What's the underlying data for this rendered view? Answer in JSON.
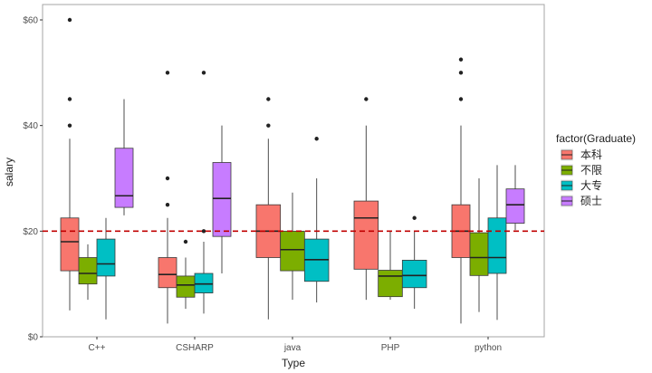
{
  "chart_data": {
    "type": "boxplot",
    "xlabel": "Type",
    "ylabel": "salary",
    "ylim": [
      0,
      63
    ],
    "yticks": [
      0,
      20,
      40,
      60
    ],
    "ytick_labels": [
      "$0",
      "$20",
      "$40",
      "$60"
    ],
    "categories": [
      "C++",
      "CSHARP",
      "java",
      "PHP",
      "python"
    ],
    "reference_line": {
      "value": 20,
      "style": "dashed",
      "color": "#c00000"
    },
    "legend": {
      "title": "factor(Graduate)",
      "position": "right",
      "entries": [
        {
          "label": "本科",
          "color": "#f8766d"
        },
        {
          "label": "不限",
          "color": "#7cae00"
        },
        {
          "label": "大专",
          "color": "#00bfc4"
        },
        {
          "label": "硕士",
          "color": "#c77cff"
        }
      ]
    },
    "series": [
      {
        "category": "C++",
        "boxes": [
          {
            "group": "本科",
            "min": 5,
            "q1": 12.5,
            "median": 18,
            "q3": 22.5,
            "max": 37.5,
            "outliers": [
              40,
              45,
              60
            ]
          },
          {
            "group": "不限",
            "min": 7,
            "q1": 10,
            "median": 12,
            "q3": 15,
            "max": 17.5,
            "outliers": []
          },
          {
            "group": "大专",
            "min": 3.3,
            "q1": 11.5,
            "median": 13.8,
            "q3": 18.5,
            "max": 22.5,
            "outliers": []
          },
          {
            "group": "硕士",
            "min": 23,
            "q1": 24.5,
            "median": 26.7,
            "q3": 35.7,
            "max": 45,
            "outliers": []
          }
        ]
      },
      {
        "category": "CSHARP",
        "boxes": [
          {
            "group": "本科",
            "min": 2.5,
            "q1": 9.3,
            "median": 11.8,
            "q3": 15,
            "max": 22.5,
            "outliers": [
              25,
              30,
              50
            ]
          },
          {
            "group": "不限",
            "min": 5.3,
            "q1": 7.5,
            "median": 9.8,
            "q3": 11.5,
            "max": 15,
            "outliers": [
              18
            ]
          },
          {
            "group": "大专",
            "min": 4.4,
            "q1": 8.3,
            "median": 10,
            "q3": 12,
            "max": 18,
            "outliers": [
              20,
              50
            ]
          },
          {
            "group": "硕士",
            "min": 12,
            "q1": 19,
            "median": 26.2,
            "q3": 33,
            "max": 40,
            "outliers": []
          }
        ]
      },
      {
        "category": "java",
        "boxes": [
          {
            "group": "本科",
            "min": 3.3,
            "q1": 15,
            "median": 20,
            "q3": 25,
            "max": 37.5,
            "outliers": [
              40,
              45
            ]
          },
          {
            "group": "不限",
            "min": 7,
            "q1": 12.5,
            "median": 16.5,
            "q3": 20,
            "max": 27.3,
            "outliers": []
          },
          {
            "group": "大专",
            "min": 6.5,
            "q1": 10.5,
            "median": 14.6,
            "q3": 18.5,
            "max": 30,
            "outliers": [
              37.5
            ]
          }
        ]
      },
      {
        "category": "PHP",
        "boxes": [
          {
            "group": "本科",
            "min": 7,
            "q1": 12.8,
            "median": 22.5,
            "q3": 25.7,
            "max": 40,
            "outliers": [
              45
            ]
          },
          {
            "group": "不限",
            "min": 7,
            "q1": 7.6,
            "median": 11.5,
            "q3": 12.6,
            "max": 20,
            "outliers": []
          },
          {
            "group": "大专",
            "min": 5.3,
            "q1": 9.3,
            "median": 11.6,
            "q3": 14.5,
            "max": 20,
            "outliers": [
              22.5
            ]
          }
        ]
      },
      {
        "category": "python",
        "boxes": [
          {
            "group": "本科",
            "min": 2.5,
            "q1": 15,
            "median": 20,
            "q3": 25,
            "max": 40,
            "outliers": [
              45,
              50,
              52.5
            ]
          },
          {
            "group": "不限",
            "min": 4.7,
            "q1": 11.6,
            "median": 15,
            "q3": 19.7,
            "max": 30,
            "outliers": []
          },
          {
            "group": "大专",
            "min": 3.2,
            "q1": 12,
            "median": 15,
            "q3": 22.5,
            "max": 32.5,
            "outliers": []
          },
          {
            "group": "硕士",
            "min": 20.2,
            "q1": 21.5,
            "median": 25,
            "q3": 28,
            "max": 32.5,
            "outliers": []
          }
        ]
      }
    ]
  }
}
